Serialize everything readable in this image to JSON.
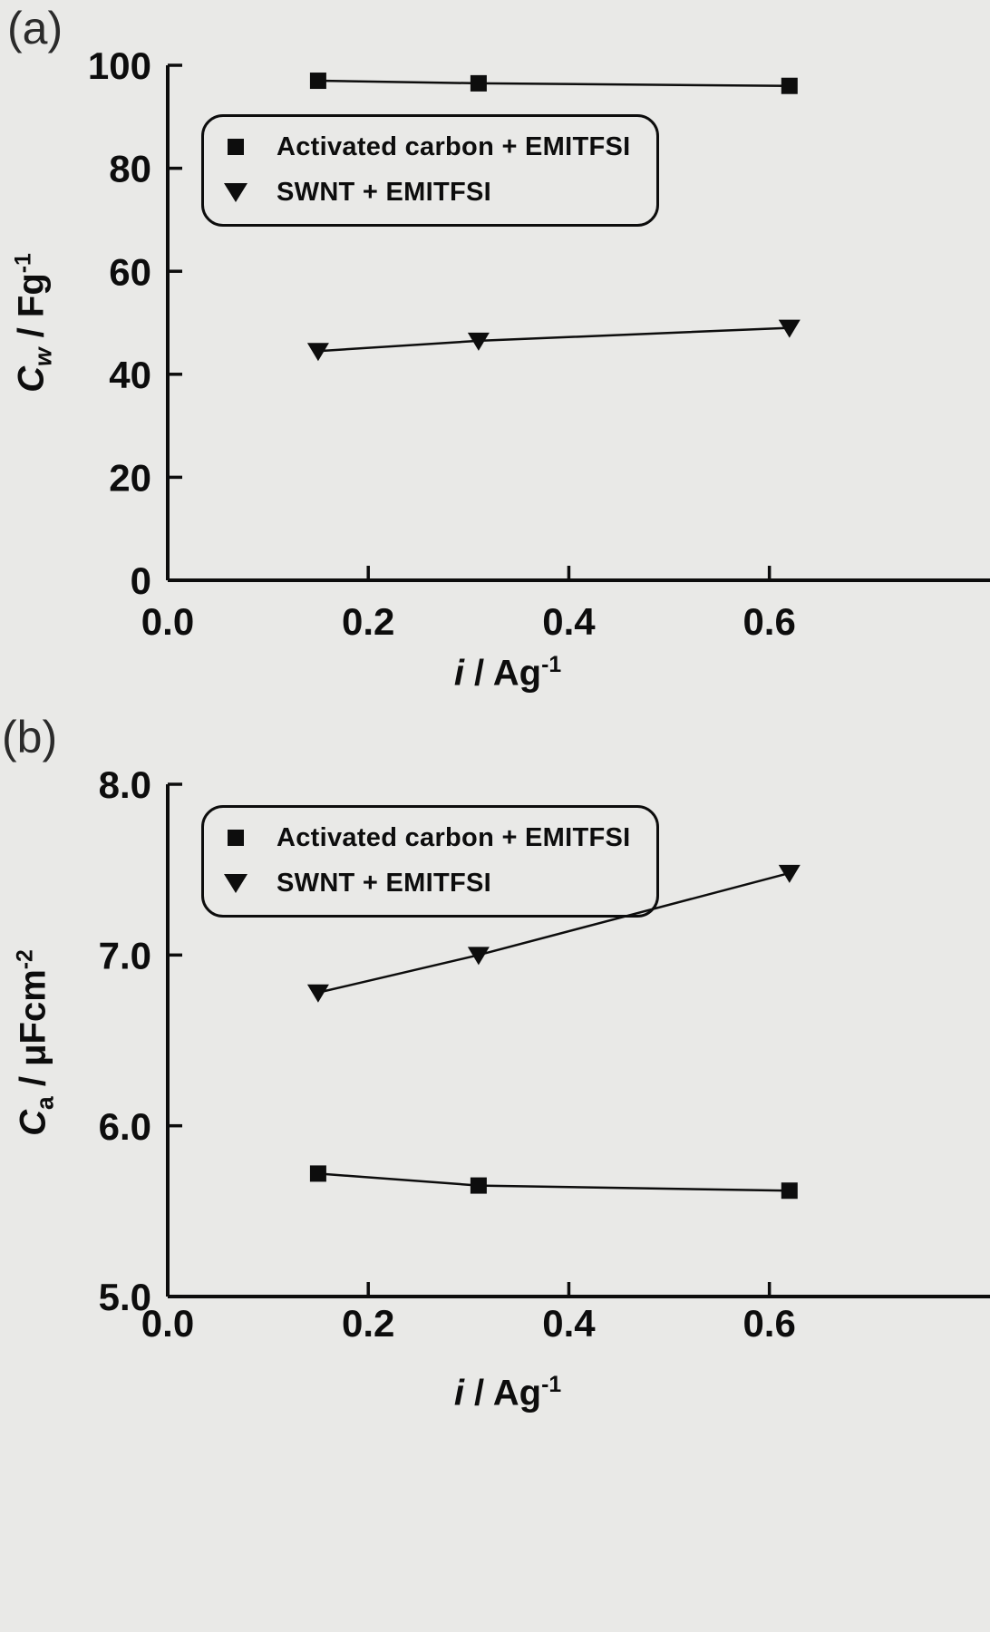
{
  "figure": {
    "panel_a_label": "(a)",
    "panel_b_label": "(b)",
    "background": "#e9e9e7",
    "ink": "#0d0d0d"
  },
  "chart_data": [
    {
      "type": "line",
      "panel": "a",
      "title": "",
      "xlabel": "i / Ag-1",
      "ylabel": "Cw / Fg-1",
      "xlabel_parts": {
        "var": "i",
        "rest": " / Ag",
        "sup": "-1"
      },
      "ylabel_parts": {
        "var": "C",
        "sub": "w",
        "rest": " / Fg",
        "sup": "-1"
      },
      "xlim": [
        0,
        0.82
      ],
      "ylim": [
        0,
        100
      ],
      "grid": false,
      "legend_position": "upper-left",
      "xticks": [
        {
          "v": 0.0,
          "label": "0.0"
        },
        {
          "v": 0.2,
          "label": "0.2"
        },
        {
          "v": 0.4,
          "label": "0.4"
        },
        {
          "v": 0.6,
          "label": "0.6"
        }
      ],
      "yticks": [
        {
          "v": 0,
          "label": "0"
        },
        {
          "v": 20,
          "label": "20"
        },
        {
          "v": 40,
          "label": "40"
        },
        {
          "v": 60,
          "label": "60"
        },
        {
          "v": 80,
          "label": "80"
        },
        {
          "v": 100,
          "label": "100"
        }
      ],
      "series": [
        {
          "name": "Activated carbon + EMITFSI",
          "marker": "square",
          "x": [
            0.15,
            0.31,
            0.62
          ],
          "y": [
            97,
            96.5,
            96
          ]
        },
        {
          "name": "SWNT + EMITFSI",
          "marker": "triangle-down",
          "x": [
            0.15,
            0.31,
            0.62
          ],
          "y": [
            44.5,
            46.5,
            49
          ]
        }
      ]
    },
    {
      "type": "line",
      "panel": "b",
      "title": "",
      "xlabel": "i / Ag-1",
      "ylabel": "Ca / μFcm-2",
      "xlabel_parts": {
        "var": "i",
        "rest": " / Ag",
        "sup": "-1"
      },
      "ylabel_parts": {
        "var": "C",
        "sub": "a",
        "rest": " / μFcm",
        "sup": "-2"
      },
      "xlim": [
        0,
        0.82
      ],
      "ylim": [
        5,
        8
      ],
      "grid": false,
      "legend_position": "upper-left",
      "xticks": [
        {
          "v": 0.0,
          "label": "0.0"
        },
        {
          "v": 0.2,
          "label": "0.2"
        },
        {
          "v": 0.4,
          "label": "0.4"
        },
        {
          "v": 0.6,
          "label": "0.6"
        }
      ],
      "yticks": [
        {
          "v": 5,
          "label": "5.0"
        },
        {
          "v": 6,
          "label": "6.0"
        },
        {
          "v": 7,
          "label": "7.0"
        },
        {
          "v": 8,
          "label": "8.0"
        }
      ],
      "series": [
        {
          "name": "Activated carbon + EMITFSI",
          "marker": "square",
          "x": [
            0.15,
            0.31,
            0.62
          ],
          "y": [
            5.72,
            5.65,
            5.62
          ]
        },
        {
          "name": "SWNT + EMITFSI",
          "marker": "triangle-down",
          "x": [
            0.15,
            0.31,
            0.62
          ],
          "y": [
            6.78,
            7.0,
            7.48
          ]
        }
      ]
    }
  ]
}
